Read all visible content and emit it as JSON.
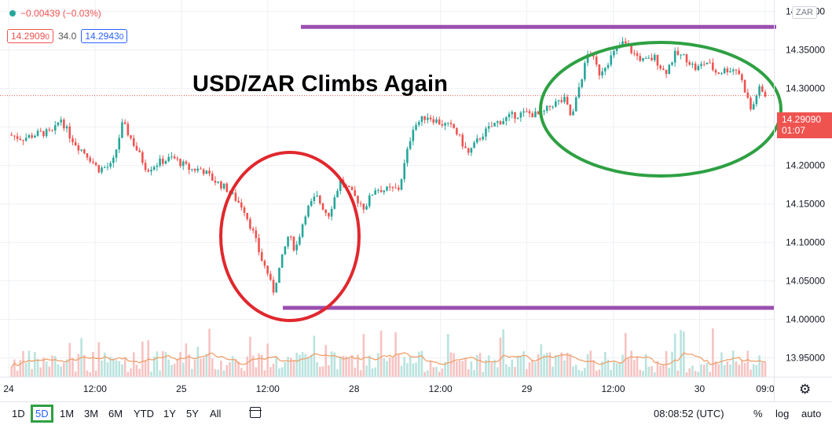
{
  "header": {
    "change": "−0.00439 (−0.03%)",
    "sell_price": "14.2909",
    "sell_price_small": "0",
    "spread": "34.0",
    "buy_price": "14.2943",
    "buy_price_small": "0"
  },
  "annotation_title": "USD/ZAR Climbs Again",
  "currency_chip": "ZAR",
  "last_price": {
    "value": "14.29090",
    "countdown": "01:07"
  },
  "bottom_bar": {
    "ranges": [
      "1D",
      "5D",
      "1M",
      "3M",
      "6M",
      "YTD",
      "1Y",
      "5Y",
      "All"
    ],
    "active_range": "5D",
    "clock": "08:08:52 (UTC)",
    "pct": "%",
    "log": "log",
    "auto": "auto"
  },
  "colors": {
    "up": "#26a69a",
    "down": "#ef5350",
    "ma": "#f0a06a",
    "level": "#9b4fb0",
    "low_circle": "#e0282e",
    "high_circle": "#2ea043"
  },
  "chart_data": {
    "type": "candlestick",
    "title": "",
    "ylim": [
      13.925,
      14.415
    ],
    "y_ticks": [
      "14.40000",
      "14.35000",
      "14.30000",
      "14.25000",
      "14.20000",
      "14.15000",
      "14.10000",
      "14.05000",
      "14.00000",
      "13.95000"
    ],
    "y_tick_values": [
      14.4,
      14.35,
      14.3,
      14.25,
      14.2,
      14.15,
      14.1,
      14.05,
      14.0,
      13.95
    ],
    "x_ticks": [
      {
        "label": "24",
        "t": 0
      },
      {
        "label": "12:00",
        "t": 0.5
      },
      {
        "label": "25",
        "t": 1
      },
      {
        "label": "12:00",
        "t": 1.5
      },
      {
        "label": "28",
        "t": 2
      },
      {
        "label": "12:00",
        "t": 2.5
      },
      {
        "label": "29",
        "t": 3
      },
      {
        "label": "12:00",
        "t": 3.5
      },
      {
        "label": "30",
        "t": 4
      },
      {
        "label": "09:0",
        "t": 4.38
      }
    ],
    "price_path": [
      [
        0.0,
        14.24
      ],
      [
        0.08,
        14.235
      ],
      [
        0.18,
        14.242
      ],
      [
        0.26,
        14.243
      ],
      [
        0.3,
        14.262
      ],
      [
        0.35,
        14.24
      ],
      [
        0.4,
        14.225
      ],
      [
        0.45,
        14.215
      ],
      [
        0.52,
        14.195
      ],
      [
        0.6,
        14.2
      ],
      [
        0.66,
        14.255
      ],
      [
        0.72,
        14.23
      ],
      [
        0.8,
        14.195
      ],
      [
        0.88,
        14.205
      ],
      [
        0.95,
        14.21
      ],
      [
        1.05,
        14.195
      ],
      [
        1.12,
        14.195
      ],
      [
        1.18,
        14.182
      ],
      [
        1.26,
        14.17
      ],
      [
        1.3,
        14.16
      ],
      [
        1.36,
        14.145
      ],
      [
        1.42,
        14.11
      ],
      [
        1.46,
        14.08
      ],
      [
        1.5,
        14.06
      ],
      [
        1.53,
        14.035
      ],
      [
        1.56,
        14.06
      ],
      [
        1.62,
        14.11
      ],
      [
        1.66,
        14.09
      ],
      [
        1.72,
        14.14
      ],
      [
        1.78,
        14.16
      ],
      [
        1.85,
        14.135
      ],
      [
        1.92,
        14.18
      ],
      [
        2.0,
        14.16
      ],
      [
        2.06,
        14.145
      ],
      [
        2.12,
        14.17
      ],
      [
        2.18,
        14.168
      ],
      [
        2.26,
        14.17
      ],
      [
        2.34,
        14.25
      ],
      [
        2.42,
        14.265
      ],
      [
        2.5,
        14.255
      ],
      [
        2.58,
        14.248
      ],
      [
        2.66,
        14.215
      ],
      [
        2.74,
        14.24
      ],
      [
        2.82,
        14.255
      ],
      [
        2.92,
        14.265
      ],
      [
        3.0,
        14.268
      ],
      [
        3.08,
        14.265
      ],
      [
        3.15,
        14.28
      ],
      [
        3.22,
        14.285
      ],
      [
        3.26,
        14.26
      ],
      [
        3.3,
        14.3
      ],
      [
        3.36,
        14.35
      ],
      [
        3.42,
        14.32
      ],
      [
        3.5,
        14.345
      ],
      [
        3.56,
        14.36
      ],
      [
        3.62,
        14.345
      ],
      [
        3.68,
        14.335
      ],
      [
        3.74,
        14.34
      ],
      [
        3.8,
        14.32
      ],
      [
        3.86,
        14.345
      ],
      [
        3.92,
        14.34
      ],
      [
        3.98,
        14.325
      ],
      [
        4.04,
        14.335
      ],
      [
        4.1,
        14.32
      ],
      [
        4.16,
        14.325
      ],
      [
        4.22,
        14.325
      ],
      [
        4.26,
        14.3
      ],
      [
        4.3,
        14.27
      ],
      [
        4.34,
        14.3
      ],
      [
        4.38,
        14.2909
      ]
    ],
    "levels": [
      14.38,
      14.015
    ]
  }
}
